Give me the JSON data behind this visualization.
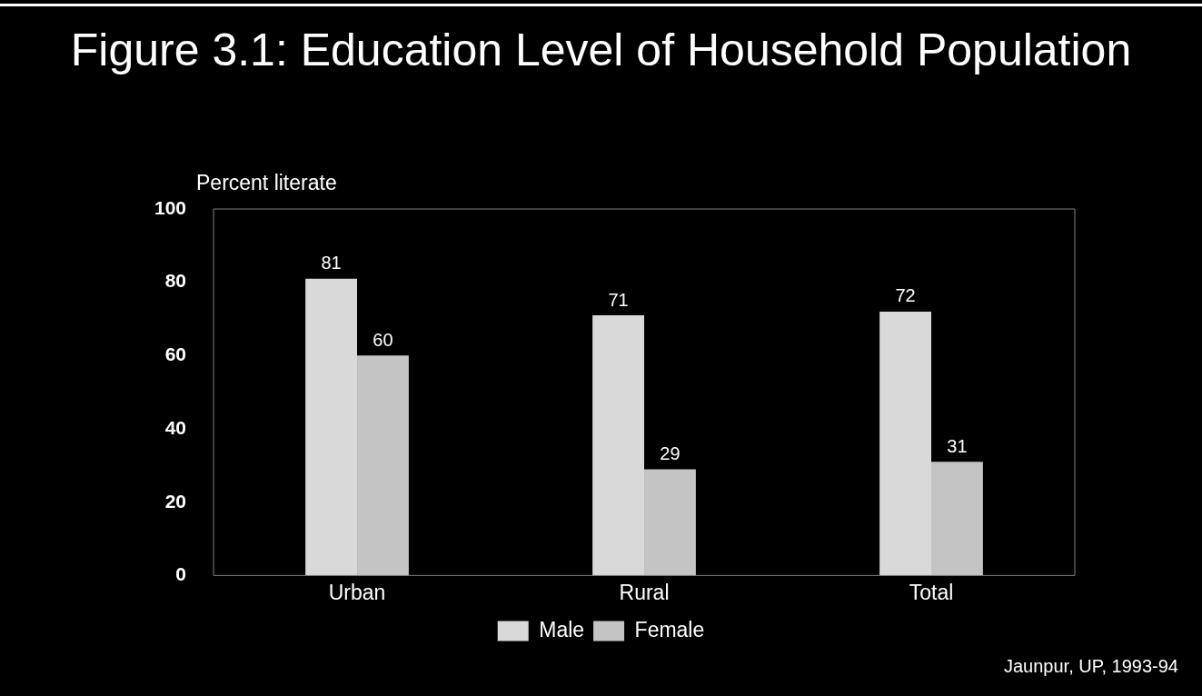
{
  "chart_data": {
    "type": "bar",
    "title": "Figure 3.1: Education Level of Household Population",
    "ylabel": "Percent literate",
    "categories": [
      "Urban",
      "Rural",
      "Total"
    ],
    "series": [
      {
        "name": "Male",
        "color": "#d9d9d9",
        "values": [
          81,
          71,
          72
        ]
      },
      {
        "name": "Female",
        "color": "#c4c4c4",
        "values": [
          60,
          29,
          31
        ]
      }
    ],
    "ylim": [
      0,
      100
    ],
    "yticks": [
      0,
      20,
      40,
      60,
      80,
      100
    ],
    "grid": false,
    "legend": "bottom",
    "data_labels": true,
    "annotations": [
      "Jaunpur, UP, 1993-94"
    ]
  }
}
